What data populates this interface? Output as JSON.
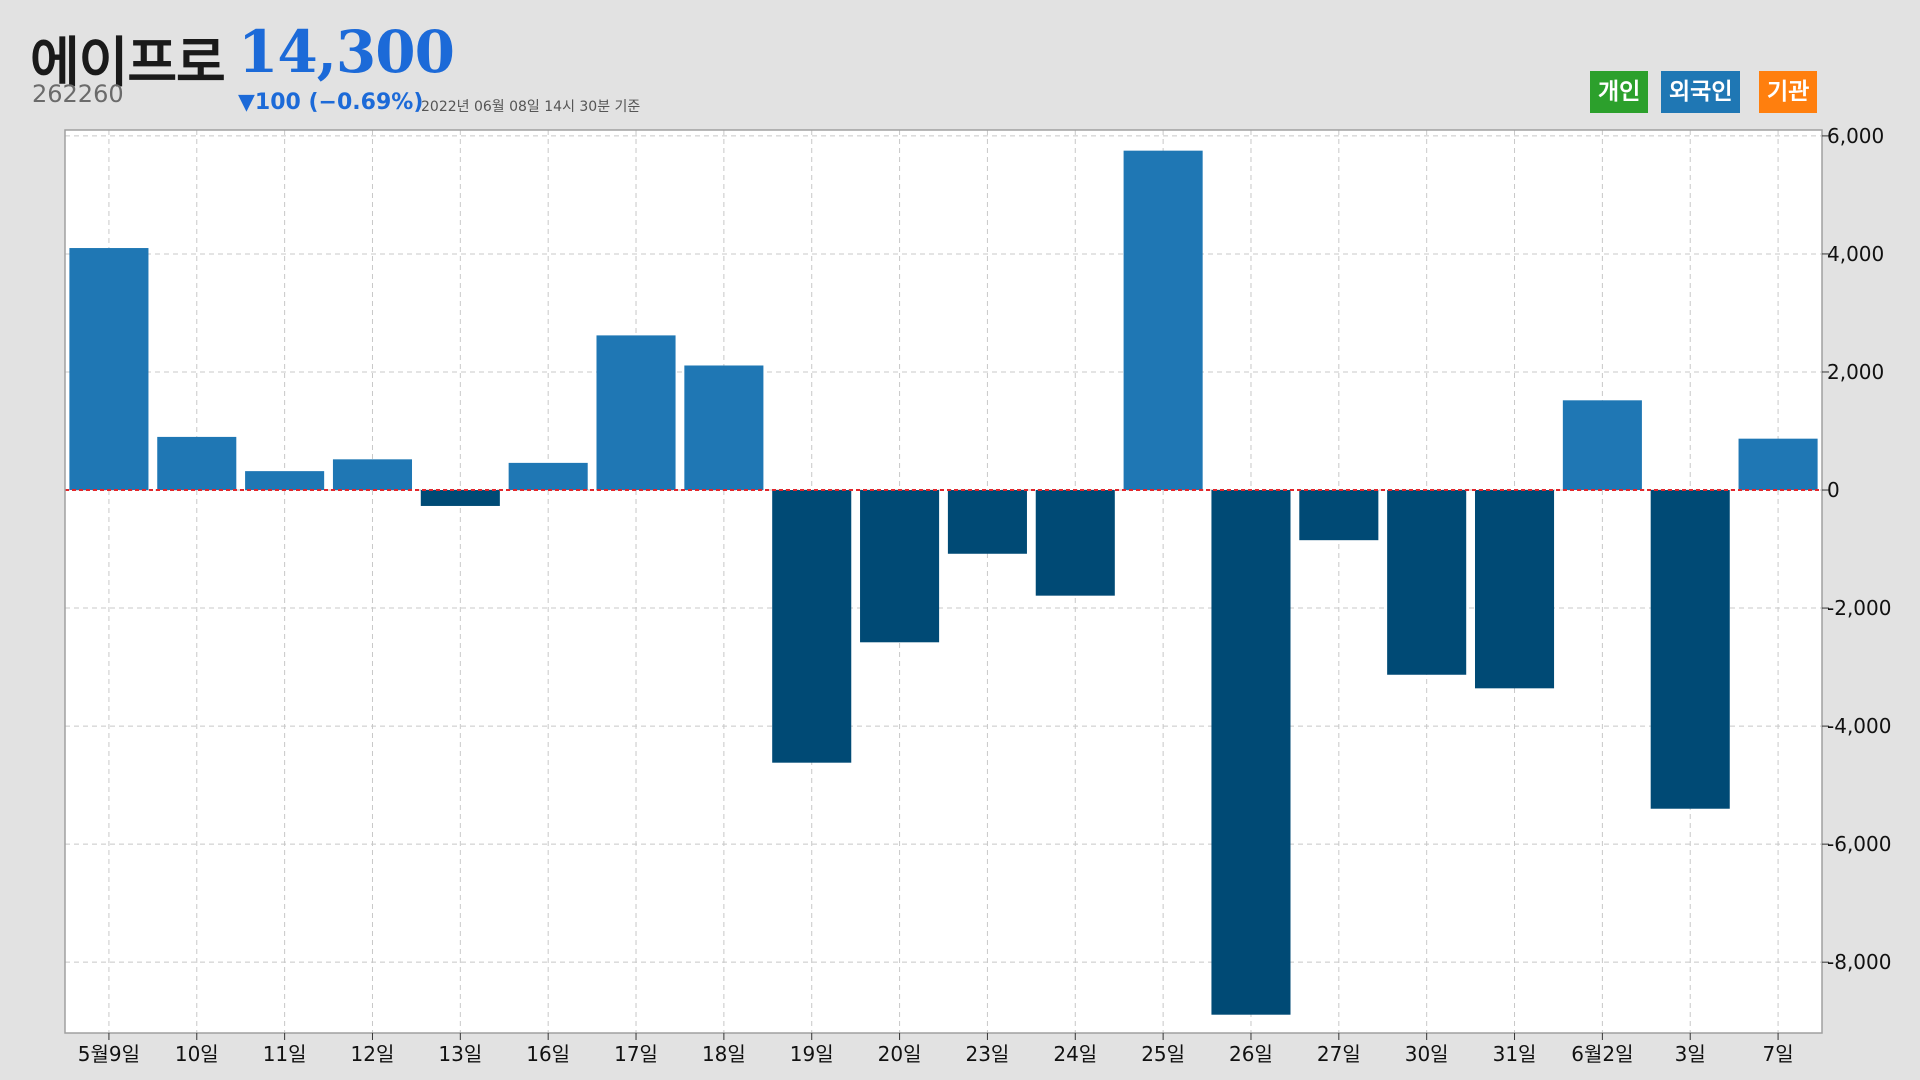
{
  "header": {
    "name": "에이프로",
    "code": "262260",
    "price": "14,300",
    "change": "▼100 (−0.69%)",
    "asof": "2022년 06월 08일 14시 30분 기준"
  },
  "legend": [
    {
      "label": "개인",
      "color": "#2ca02c"
    },
    {
      "label": "외국인",
      "color": "#1f77b4"
    },
    {
      "label": "기관",
      "color": "#ff7f0e"
    }
  ],
  "colors": {
    "positive": "#1f77b4",
    "negative": "#004a75",
    "zero_line": "#e3262b",
    "background": "#e2e2e2",
    "plot_background": "#ffffff"
  },
  "chart_data": {
    "type": "bar",
    "categories": [
      "5월9일",
      "10일",
      "11일",
      "12일",
      "13일",
      "16일",
      "17일",
      "18일",
      "19일",
      "20일",
      "23일",
      "24일",
      "25일",
      "26일",
      "27일",
      "30일",
      "31일",
      "6월2일",
      "3일",
      "7일"
    ],
    "values": [
      4100,
      900,
      320,
      520,
      -270,
      460,
      2620,
      2110,
      -4620,
      -2580,
      -1080,
      -1790,
      5750,
      -8890,
      -850,
      -3130,
      -3360,
      1520,
      -5400,
      870
    ],
    "ylim": [
      -9200,
      6100
    ],
    "yticks": [
      6000,
      4000,
      2000,
      0,
      -2000,
      -4000,
      -6000,
      -8000
    ],
    "ytick_labels": [
      "6,000",
      "4,000",
      "2,000",
      "0",
      "-2,000",
      "-4,000",
      "-6,000",
      "-8,000"
    ],
    "grid": true,
    "y_axis_side": "right",
    "legend_position": "top-right",
    "title": "",
    "xlabel": "",
    "ylabel": ""
  }
}
